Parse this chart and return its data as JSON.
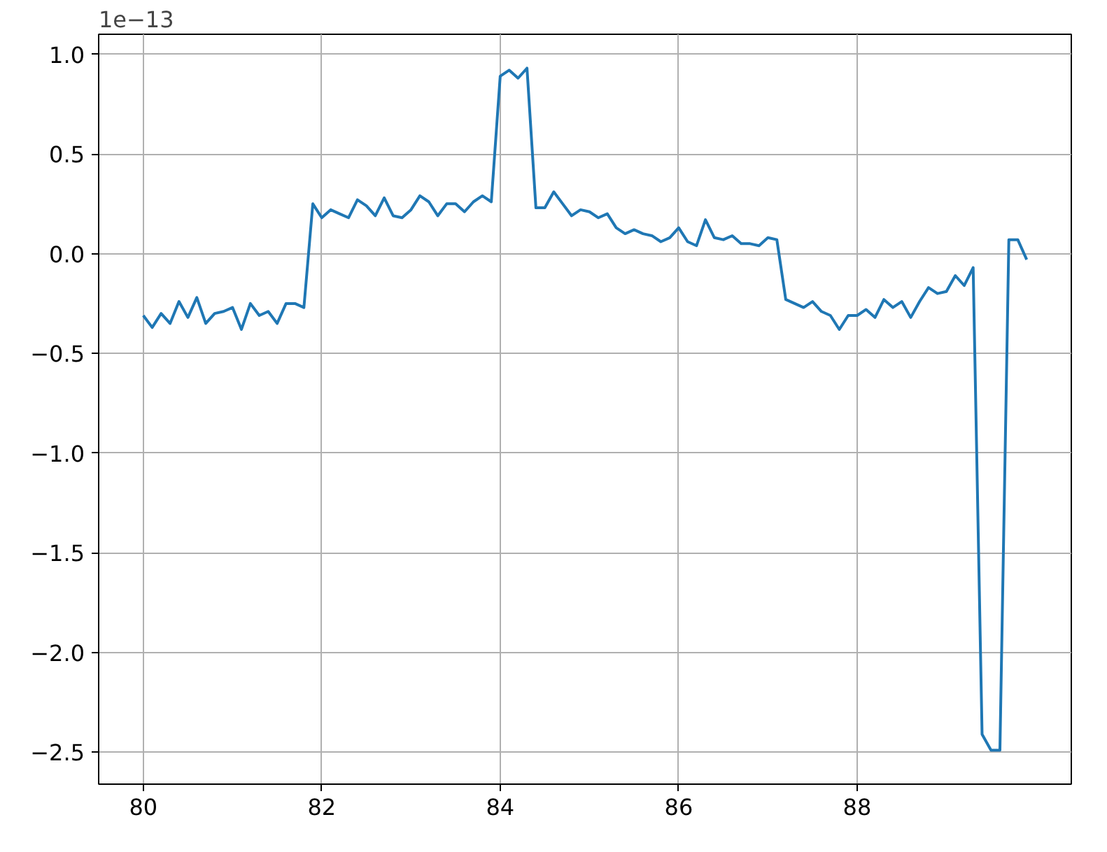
{
  "chart_data": {
    "type": "line",
    "annotations": [
      "1e−13"
    ],
    "x": [
      80.0,
      80.1,
      80.2,
      80.3,
      80.4,
      80.5,
      80.6,
      80.7,
      80.8,
      80.9,
      81.0,
      81.1,
      81.2,
      81.3,
      81.4,
      81.5,
      81.6,
      81.7,
      81.8,
      81.9,
      82.0,
      82.1,
      82.2,
      82.3,
      82.4,
      82.5,
      82.6,
      82.7,
      82.8,
      82.9,
      83.0,
      83.1,
      83.2,
      83.3,
      83.4,
      83.5,
      83.6,
      83.7,
      83.8,
      83.9,
      84.0,
      84.1,
      84.2,
      84.3,
      84.4,
      84.5,
      84.6,
      84.7,
      84.8,
      84.9,
      85.0,
      85.1,
      85.2,
      85.3,
      85.4,
      85.5,
      85.6,
      85.7,
      85.8,
      85.9,
      86.0,
      86.1,
      86.2,
      86.3,
      86.4,
      86.5,
      86.6,
      86.7,
      86.8,
      86.9,
      87.0,
      87.1,
      87.2,
      87.3,
      87.4,
      87.5,
      87.6,
      87.7,
      87.8,
      87.9,
      88.0,
      88.1,
      88.2,
      88.3,
      88.4,
      88.5,
      88.6,
      88.7,
      88.8,
      88.9,
      89.0,
      89.1,
      89.2,
      89.3,
      89.4,
      89.5,
      89.6,
      89.7,
      89.8,
      89.9
    ],
    "series": [
      {
        "color": "#1f77b4",
        "values": [
          -0.31,
          -0.37,
          -0.3,
          -0.35,
          -0.24,
          -0.32,
          -0.22,
          -0.35,
          -0.3,
          -0.29,
          -0.27,
          -0.38,
          -0.25,
          -0.31,
          -0.29,
          -0.35,
          -0.25,
          -0.25,
          -0.27,
          0.25,
          0.18,
          0.22,
          0.2,
          0.18,
          0.27,
          0.24,
          0.19,
          0.28,
          0.19,
          0.18,
          0.22,
          0.29,
          0.26,
          0.19,
          0.25,
          0.25,
          0.21,
          0.26,
          0.29,
          0.26,
          0.89,
          0.92,
          0.88,
          0.93,
          0.23,
          0.23,
          0.31,
          0.25,
          0.19,
          0.22,
          0.21,
          0.18,
          0.2,
          0.13,
          0.1,
          0.12,
          0.1,
          0.09,
          0.06,
          0.08,
          0.13,
          0.06,
          0.04,
          0.17,
          0.08,
          0.07,
          0.09,
          0.05,
          0.05,
          0.04,
          0.08,
          0.07,
          -0.23,
          -0.25,
          -0.27,
          -0.24,
          -0.29,
          -0.31,
          -0.38,
          -0.31,
          -0.31,
          -0.28,
          -0.32,
          -0.23,
          -0.27,
          -0.24,
          -0.32,
          -0.24,
          -0.17,
          -0.2,
          -0.19,
          -0.11,
          -0.16,
          -0.07,
          -2.41,
          -2.49,
          -2.49,
          0.07,
          0.07,
          -0.03
        ]
      }
    ],
    "xlim": [
      79.5,
      90.4
    ],
    "ylim": [
      -2.66,
      1.1
    ],
    "xticks": [
      80,
      82,
      84,
      86,
      88
    ],
    "yticks": [
      {
        "value": 1.0,
        "label": "1.0"
      },
      {
        "value": 0.5,
        "label": "0.5"
      },
      {
        "value": 0.0,
        "label": "0.0"
      },
      {
        "value": -0.5,
        "label": "−0.5"
      },
      {
        "value": -1.0,
        "label": "−1.0"
      },
      {
        "value": -1.5,
        "label": "−1.5"
      },
      {
        "value": -2.0,
        "label": "−2.0"
      },
      {
        "value": -2.5,
        "label": "−2.5"
      }
    ],
    "grid": true,
    "line_style": "solid"
  }
}
